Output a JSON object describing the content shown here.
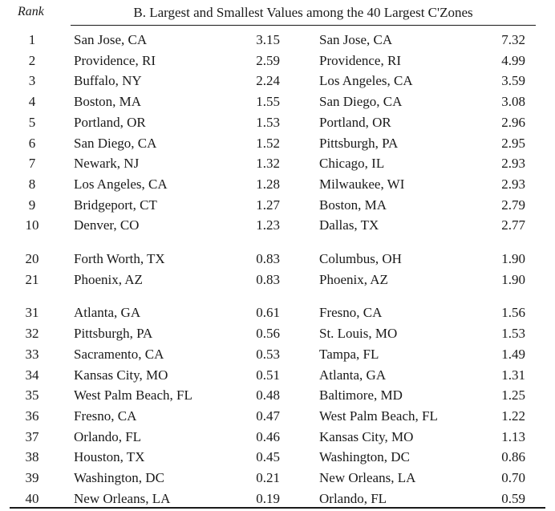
{
  "table": {
    "rank_header": "Rank",
    "title": "B. Largest and Smallest Values among the 40 Largest C'Zones",
    "groups": [
      {
        "rows": [
          {
            "rank": "1",
            "city1": "San Jose, CA",
            "value1": "3.15",
            "city2": "San Jose, CA",
            "value2": "7.32"
          },
          {
            "rank": "2",
            "city1": "Providence, RI",
            "value1": "2.59",
            "city2": "Providence, RI",
            "value2": "4.99"
          },
          {
            "rank": "3",
            "city1": "Buffalo, NY",
            "value1": "2.24",
            "city2": "Los Angeles, CA",
            "value2": "3.59"
          },
          {
            "rank": "4",
            "city1": "Boston, MA",
            "value1": "1.55",
            "city2": "San Diego, CA",
            "value2": "3.08"
          },
          {
            "rank": "5",
            "city1": "Portland, OR",
            "value1": "1.53",
            "city2": "Portland, OR",
            "value2": "2.96"
          },
          {
            "rank": "6",
            "city1": "San Diego, CA",
            "value1": "1.52",
            "city2": "Pittsburgh, PA",
            "value2": "2.95"
          },
          {
            "rank": "7",
            "city1": "Newark, NJ",
            "value1": "1.32",
            "city2": "Chicago, IL",
            "value2": "2.93"
          },
          {
            "rank": "8",
            "city1": "Los Angeles, CA",
            "value1": "1.28",
            "city2": "Milwaukee, WI",
            "value2": "2.93"
          },
          {
            "rank": "9",
            "city1": "Bridgeport, CT",
            "value1": "1.27",
            "city2": "Boston, MA",
            "value2": "2.79"
          },
          {
            "rank": "10",
            "city1": "Denver, CO",
            "value1": "1.23",
            "city2": "Dallas, TX",
            "value2": "2.77"
          }
        ]
      },
      {
        "rows": [
          {
            "rank": "20",
            "city1": "Forth Worth, TX",
            "value1": "0.83",
            "city2": "Columbus, OH",
            "value2": "1.90"
          },
          {
            "rank": "21",
            "city1": "Phoenix, AZ",
            "value1": "0.83",
            "city2": "Phoenix, AZ",
            "value2": "1.90"
          }
        ]
      },
      {
        "rows": [
          {
            "rank": "31",
            "city1": "Atlanta, GA",
            "value1": "0.61",
            "city2": "Fresno, CA",
            "value2": "1.56"
          },
          {
            "rank": "32",
            "city1": "Pittsburgh, PA",
            "value1": "0.56",
            "city2": "St. Louis, MO",
            "value2": "1.53"
          },
          {
            "rank": "33",
            "city1": "Sacramento, CA",
            "value1": "0.53",
            "city2": "Tampa, FL",
            "value2": "1.49"
          },
          {
            "rank": "34",
            "city1": "Kansas City, MO",
            "value1": "0.51",
            "city2": "Atlanta, GA",
            "value2": "1.31"
          },
          {
            "rank": "35",
            "city1": "West Palm Beach, FL",
            "value1": "0.48",
            "city2": "Baltimore, MD",
            "value2": "1.25"
          },
          {
            "rank": "36",
            "city1": "Fresno, CA",
            "value1": "0.47",
            "city2": "West Palm Beach, FL",
            "value2": "1.22"
          },
          {
            "rank": "37",
            "city1": "Orlando, FL",
            "value1": "0.46",
            "city2": "Kansas City, MO",
            "value2": "1.13"
          },
          {
            "rank": "38",
            "city1": "Houston, TX",
            "value1": "0.45",
            "city2": "Washington, DC",
            "value2": "0.86"
          },
          {
            "rank": "39",
            "city1": "Washington, DC",
            "value1": "0.21",
            "city2": "New Orleans, LA",
            "value2": "0.70"
          },
          {
            "rank": "40",
            "city1": "New Orleans, LA",
            "value1": "0.19",
            "city2": "Orlando, FL",
            "value2": "0.59"
          }
        ]
      }
    ]
  }
}
